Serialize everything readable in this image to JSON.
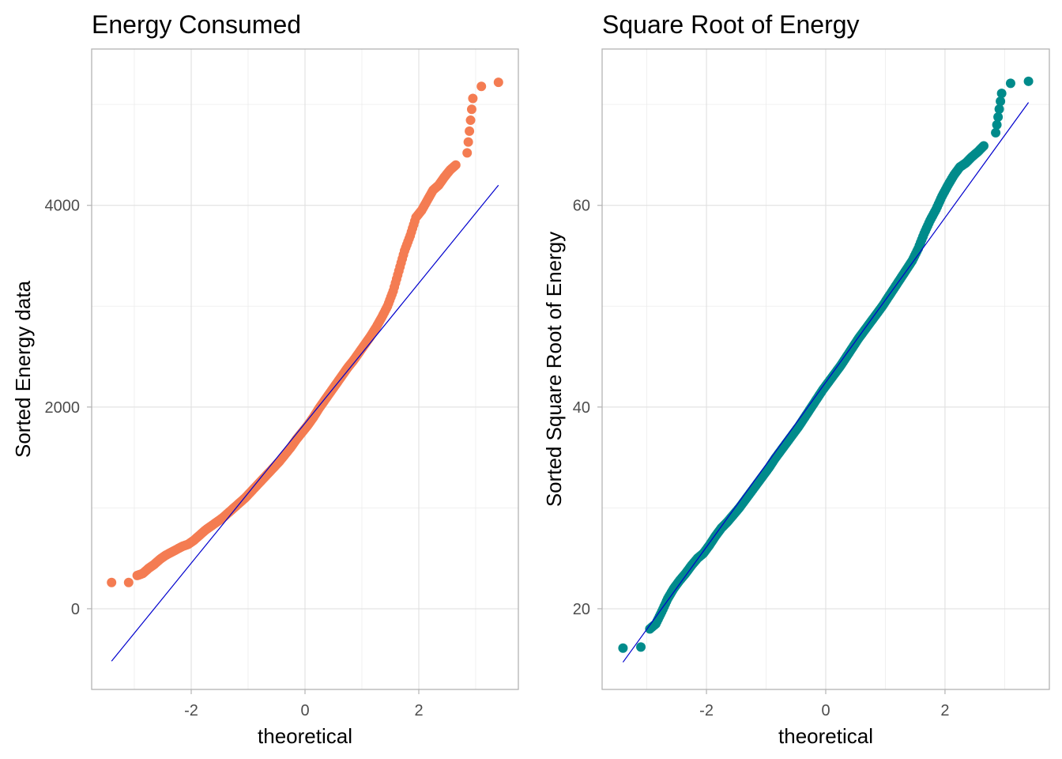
{
  "chart_data": [
    {
      "type": "scatter",
      "title": "Energy Consumed",
      "xlabel": "theoretical",
      "ylabel": "Sorted Energy data",
      "xlim": [
        -3.75,
        3.75
      ],
      "ylim": [
        -800,
        5550
      ],
      "xticks": [
        -2,
        0,
        2
      ],
      "yticks": [
        0,
        2000,
        4000
      ],
      "xtick_labels": [
        "-2",
        "0",
        "2"
      ],
      "ytick_labels": [
        "0",
        "2000",
        "4000"
      ],
      "grid": true,
      "point_color": "#f47c52",
      "line_color": "#0000cd",
      "reference_line": {
        "x": [
          -3.4,
          3.4
        ],
        "y": [
          -520,
          4200
        ]
      },
      "points": [
        [
          -3.4,
          260
        ],
        [
          -3.1,
          260
        ],
        [
          -2.95,
          330
        ],
        [
          -2.85,
          350
        ],
        [
          -2.75,
          400
        ],
        [
          -2.65,
          440
        ],
        [
          -2.55,
          490
        ],
        [
          -2.45,
          530
        ],
        [
          -2.35,
          560
        ],
        [
          -2.25,
          590
        ],
        [
          -2.15,
          620
        ],
        [
          -2.05,
          640
        ],
        [
          -1.95,
          680
        ],
        [
          -1.85,
          730
        ],
        [
          -1.75,
          780
        ],
        [
          -1.65,
          820
        ],
        [
          -1.55,
          860
        ],
        [
          -1.45,
          900
        ],
        [
          -1.35,
          950
        ],
        [
          -1.25,
          1000
        ],
        [
          -1.15,
          1050
        ],
        [
          -1.05,
          1100
        ],
        [
          -0.95,
          1160
        ],
        [
          -0.85,
          1220
        ],
        [
          -0.75,
          1280
        ],
        [
          -0.65,
          1340
        ],
        [
          -0.55,
          1400
        ],
        [
          -0.45,
          1460
        ],
        [
          -0.35,
          1530
        ],
        [
          -0.25,
          1600
        ],
        [
          -0.15,
          1680
        ],
        [
          -0.05,
          1750
        ],
        [
          0.05,
          1820
        ],
        [
          0.15,
          1900
        ],
        [
          0.25,
          1990
        ],
        [
          0.35,
          2070
        ],
        [
          0.45,
          2150
        ],
        [
          0.55,
          2230
        ],
        [
          0.65,
          2310
        ],
        [
          0.75,
          2390
        ],
        [
          0.85,
          2460
        ],
        [
          0.95,
          2540
        ],
        [
          1.05,
          2620
        ],
        [
          1.15,
          2700
        ],
        [
          1.25,
          2790
        ],
        [
          1.35,
          2890
        ],
        [
          1.45,
          3000
        ],
        [
          1.55,
          3150
        ],
        [
          1.65,
          3350
        ],
        [
          1.75,
          3550
        ],
        [
          1.85,
          3700
        ],
        [
          1.95,
          3880
        ],
        [
          2.05,
          3950
        ],
        [
          2.15,
          4050
        ],
        [
          2.25,
          4150
        ],
        [
          2.35,
          4200
        ],
        [
          2.45,
          4280
        ],
        [
          2.55,
          4350
        ],
        [
          2.65,
          4400
        ],
        [
          2.85,
          4520
        ],
        [
          2.95,
          5060
        ],
        [
          3.1,
          5180
        ],
        [
          3.4,
          5220
        ]
      ]
    },
    {
      "type": "scatter",
      "title": "Square Root of Energy",
      "xlabel": "theoretical",
      "ylabel": "Sorted Square Root of Energy",
      "xlim": [
        -3.75,
        3.75
      ],
      "ylim": [
        12,
        75.5
      ],
      "xticks": [
        -2,
        0,
        2
      ],
      "yticks": [
        20,
        40,
        60
      ],
      "xtick_labels": [
        "-2",
        "0",
        "2"
      ],
      "ytick_labels": [
        "20",
        "40",
        "60"
      ],
      "grid": true,
      "point_color": "#008b8b",
      "line_color": "#0000cd",
      "reference_line": {
        "x": [
          -3.4,
          3.4
        ],
        "y": [
          14.7,
          70.2
        ]
      },
      "points": [
        [
          -3.4,
          16.1
        ],
        [
          -3.1,
          16.2
        ],
        [
          -2.95,
          18.0
        ],
        [
          -2.85,
          18.5
        ],
        [
          -2.75,
          19.7
        ],
        [
          -2.65,
          21.0
        ],
        [
          -2.55,
          22.0
        ],
        [
          -2.45,
          22.8
        ],
        [
          -2.35,
          23.5
        ],
        [
          -2.25,
          24.3
        ],
        [
          -2.15,
          25.0
        ],
        [
          -2.05,
          25.5
        ],
        [
          -1.95,
          26.3
        ],
        [
          -1.85,
          27.2
        ],
        [
          -1.75,
          28.0
        ],
        [
          -1.65,
          28.6
        ],
        [
          -1.55,
          29.3
        ],
        [
          -1.45,
          30.0
        ],
        [
          -1.35,
          30.8
        ],
        [
          -1.25,
          31.6
        ],
        [
          -1.15,
          32.4
        ],
        [
          -1.05,
          33.2
        ],
        [
          -0.95,
          34.0
        ],
        [
          -0.85,
          34.9
        ],
        [
          -0.75,
          35.7
        ],
        [
          -0.65,
          36.5
        ],
        [
          -0.55,
          37.3
        ],
        [
          -0.45,
          38.1
        ],
        [
          -0.35,
          39.0
        ],
        [
          -0.25,
          39.9
        ],
        [
          -0.15,
          40.8
        ],
        [
          -0.05,
          41.7
        ],
        [
          0.05,
          42.5
        ],
        [
          0.15,
          43.3
        ],
        [
          0.25,
          44.1
        ],
        [
          0.35,
          45.0
        ],
        [
          0.45,
          45.9
        ],
        [
          0.55,
          46.8
        ],
        [
          0.65,
          47.6
        ],
        [
          0.75,
          48.4
        ],
        [
          0.85,
          49.2
        ],
        [
          0.95,
          50.0
        ],
        [
          1.05,
          50.9
        ],
        [
          1.15,
          51.8
        ],
        [
          1.25,
          52.7
        ],
        [
          1.35,
          53.6
        ],
        [
          1.45,
          54.5
        ],
        [
          1.55,
          55.7
        ],
        [
          1.65,
          57.2
        ],
        [
          1.75,
          58.5
        ],
        [
          1.85,
          59.6
        ],
        [
          1.95,
          60.9
        ],
        [
          2.05,
          62.0
        ],
        [
          2.15,
          63.0
        ],
        [
          2.25,
          63.8
        ],
        [
          2.35,
          64.2
        ],
        [
          2.45,
          64.8
        ],
        [
          2.55,
          65.3
        ],
        [
          2.65,
          65.9
        ],
        [
          2.85,
          67.2
        ],
        [
          2.95,
          71.1
        ],
        [
          3.1,
          72.1
        ],
        [
          3.4,
          72.3
        ]
      ]
    }
  ]
}
